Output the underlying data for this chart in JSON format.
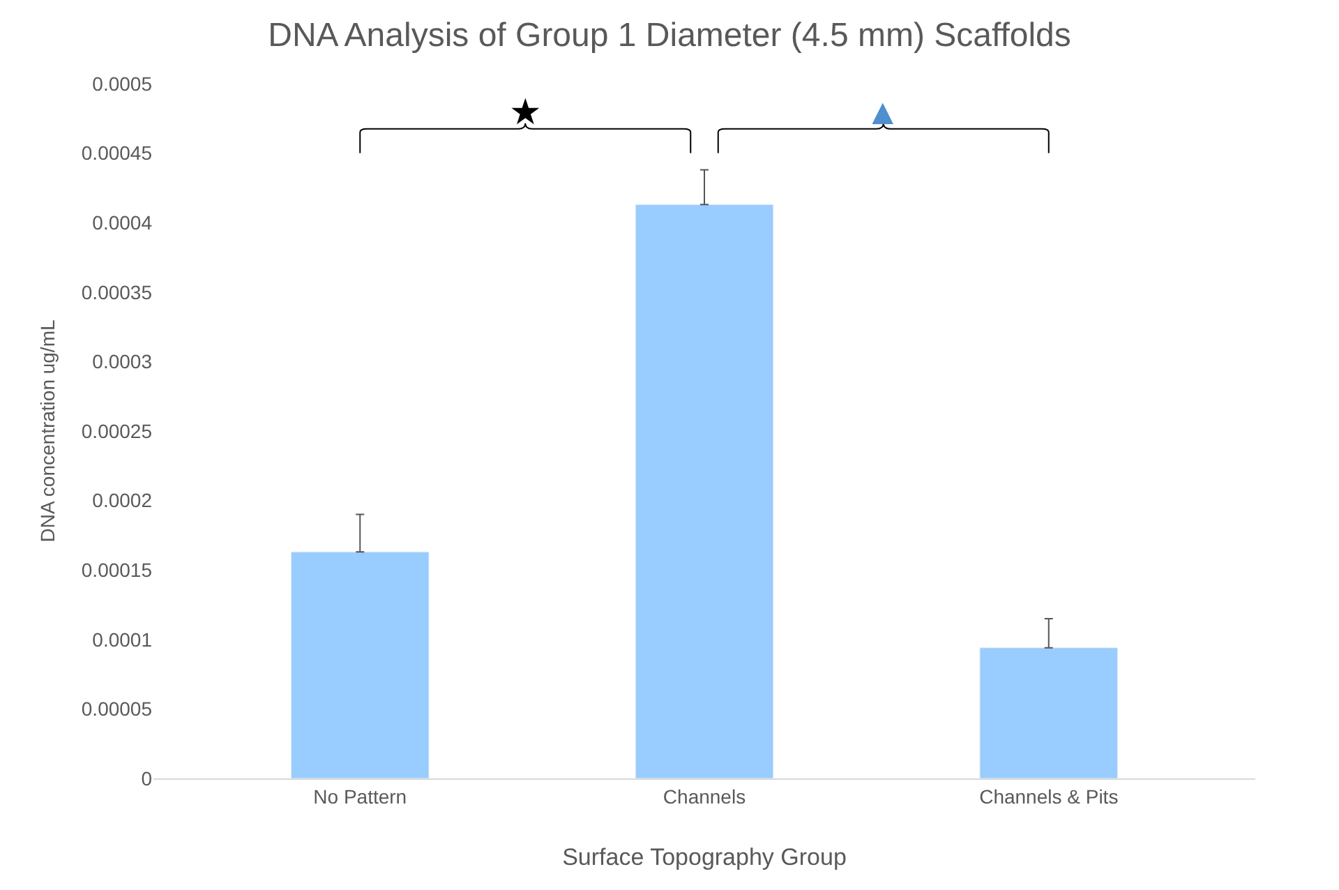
{
  "chart_data": {
    "type": "bar",
    "title": "DNA Analysis of Group 1 Diameter (4.5 mm) Scaffolds",
    "xlabel": "Surface Topography Group",
    "ylabel": "DNA concentration ug/mL",
    "categories": [
      "No Pattern",
      "Channels",
      "Channels & Pits"
    ],
    "values": [
      0.000163,
      0.000413,
      9.4e-05
    ],
    "errors": [
      [
        0.000163,
        0.00019
      ],
      [
        0.000413,
        0.000438
      ],
      [
        9.4e-05,
        0.000115
      ]
    ],
    "color": "#99ccff",
    "ylim": [
      0,
      0.0005
    ],
    "yticks": [
      0,
      {
        "value": 5e-05,
        "label": "0.00005"
      },
      0.0001,
      0.00015,
      0.0002,
      0.00025,
      0.0003,
      0.00035,
      0.0004,
      0.00045,
      0.0005
    ],
    "annotations": [
      "★",
      "▲"
    ]
  }
}
